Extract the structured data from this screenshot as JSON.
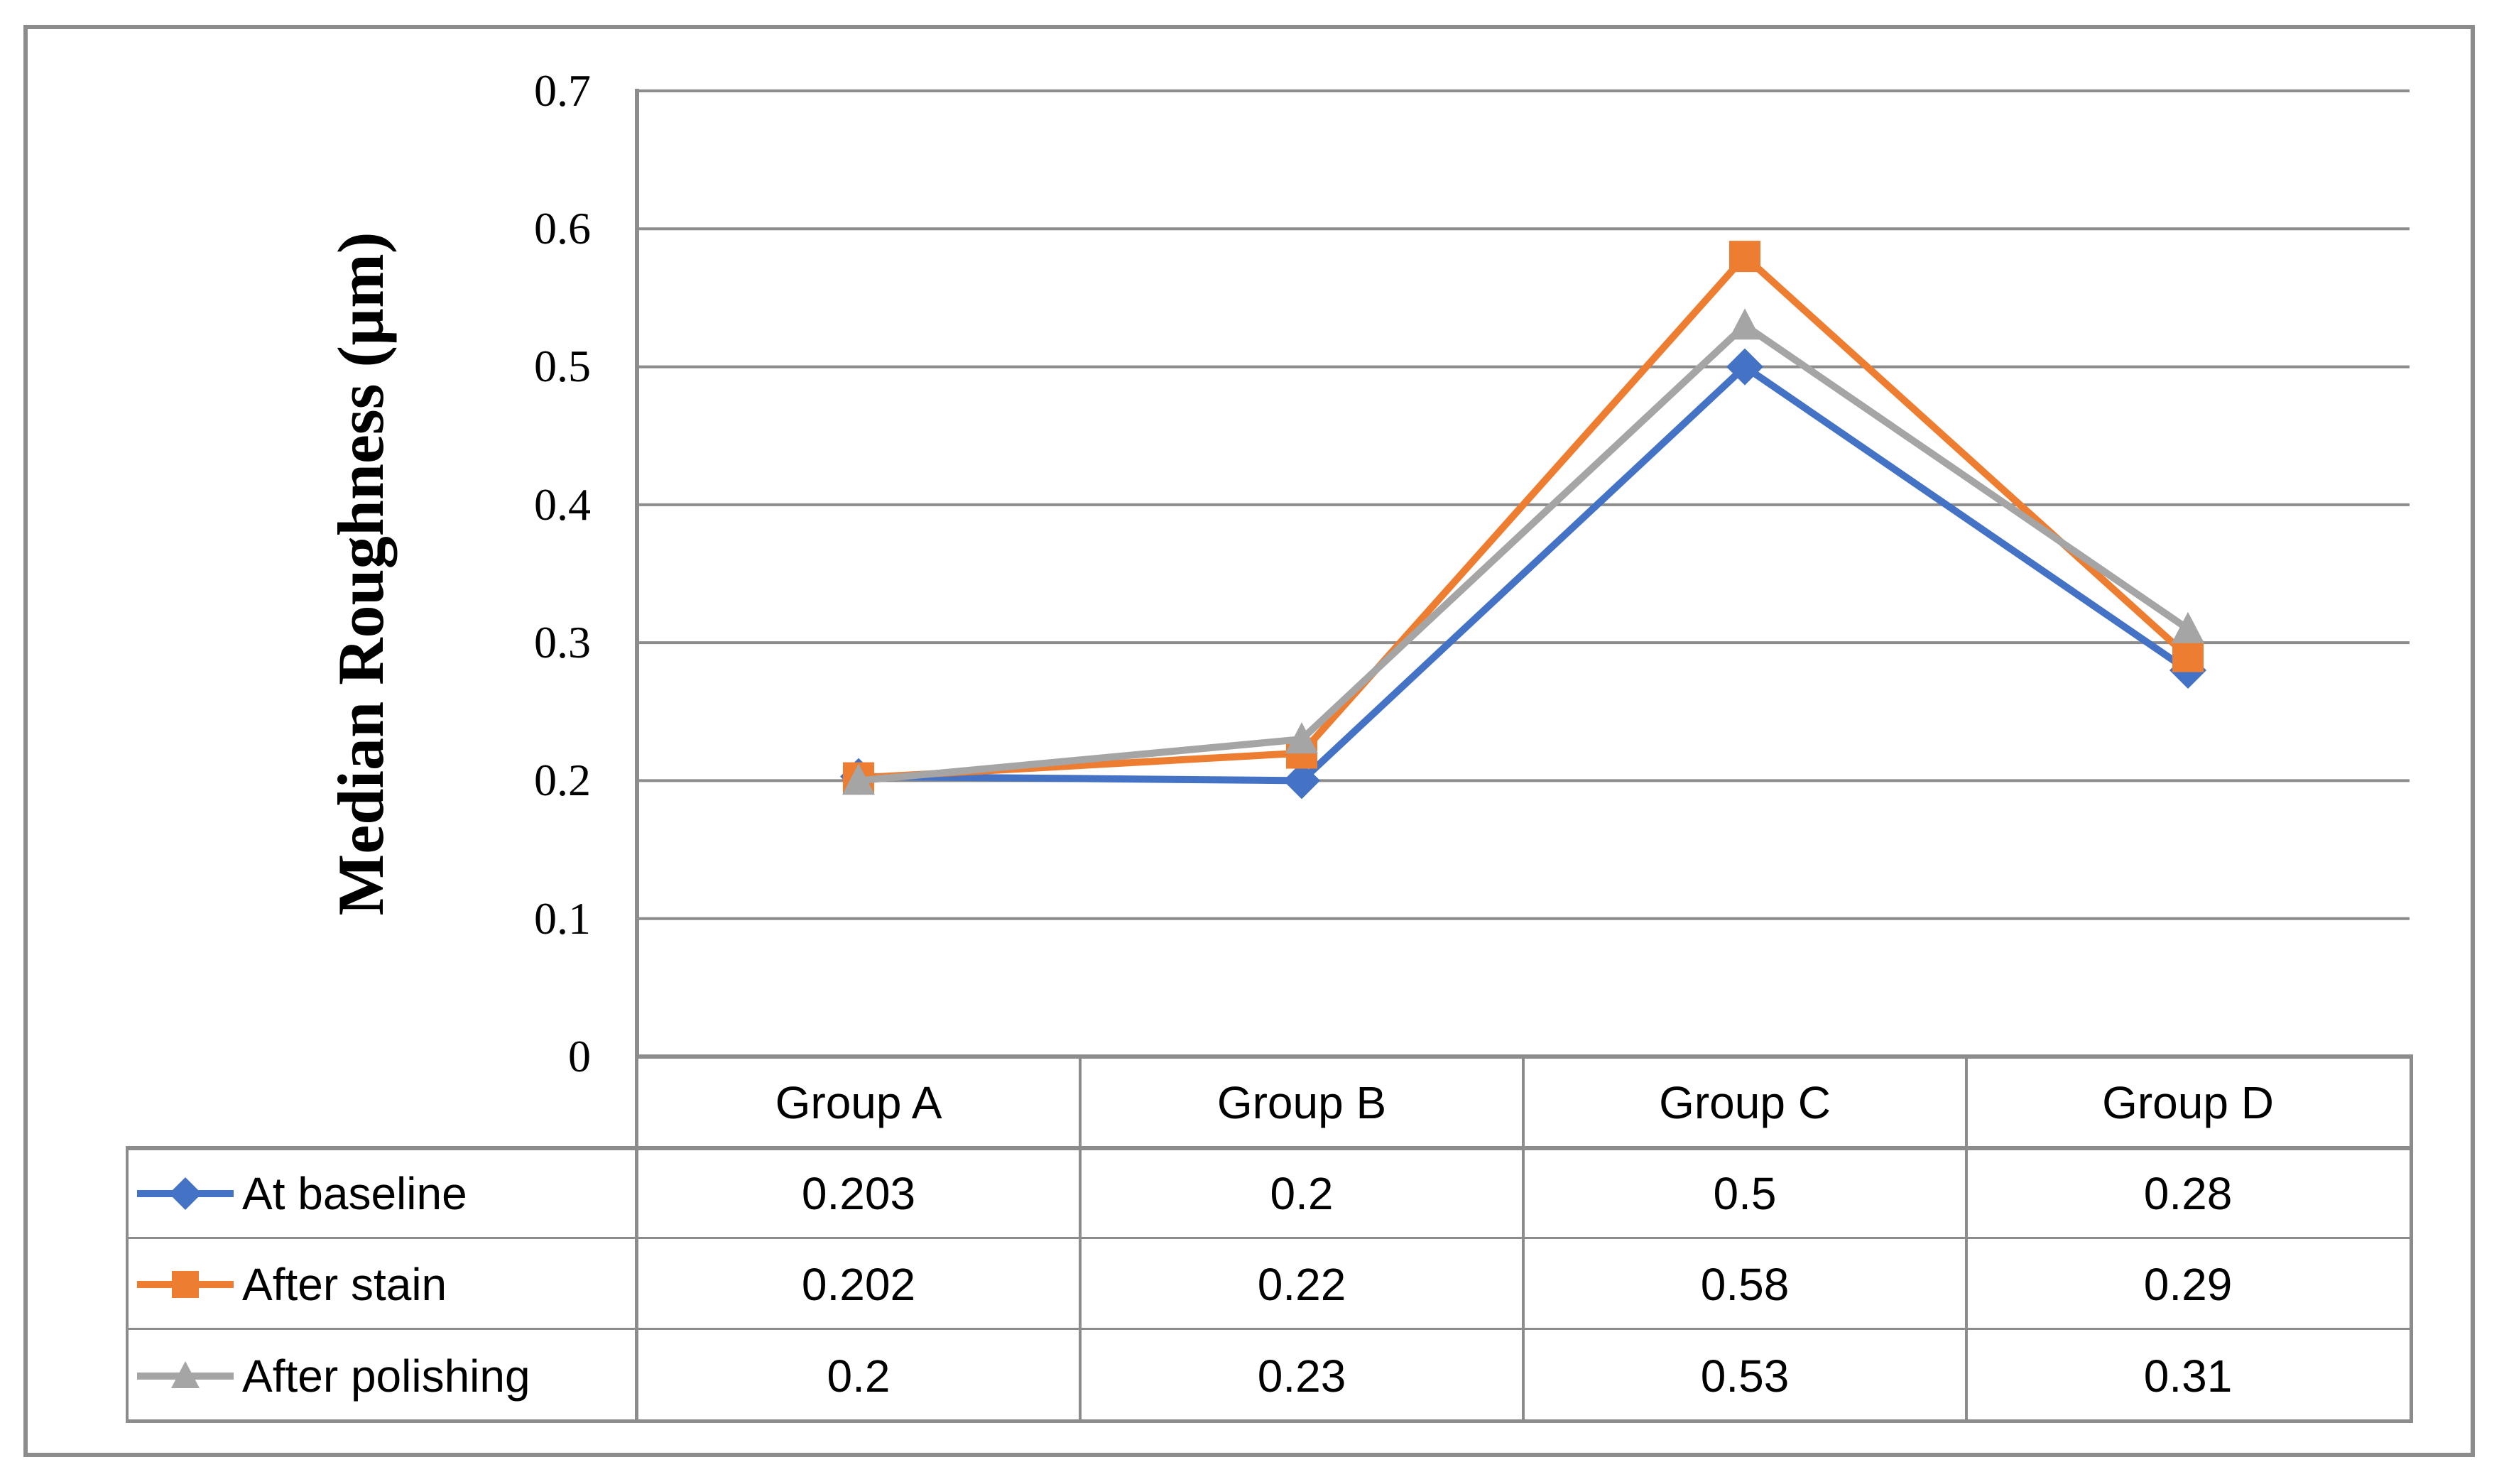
{
  "figure": {
    "background_color": "#FFFFFF",
    "border_color": "#8C8C8C"
  },
  "chart_data": {
    "type": "line",
    "title": "",
    "categories": [
      "Group A",
      "Group B",
      "Group C",
      "Group D"
    ],
    "series": [
      {
        "name": "At baseline",
        "color": "#4472C4",
        "marker": "diamond",
        "values": [
          0.203,
          0.2,
          0.5,
          0.28
        ]
      },
      {
        "name": "After stain",
        "color": "#ED7D31",
        "marker": "square",
        "values": [
          0.202,
          0.22,
          0.58,
          0.29
        ]
      },
      {
        "name": "After polishing",
        "color": "#A5A5A5",
        "marker": "triangle",
        "values": [
          0.2,
          0.23,
          0.53,
          0.31
        ]
      }
    ],
    "xlabel": "",
    "ylabel": "Median Roughness (µm)",
    "ylim": [
      0,
      0.7
    ],
    "y_ticks": [
      0,
      0.1,
      0.2,
      0.3,
      0.4,
      0.5,
      0.6,
      0.7
    ],
    "grid": true,
    "gridline_color": "#8C8C8C",
    "legend_position": "data-table-left"
  }
}
